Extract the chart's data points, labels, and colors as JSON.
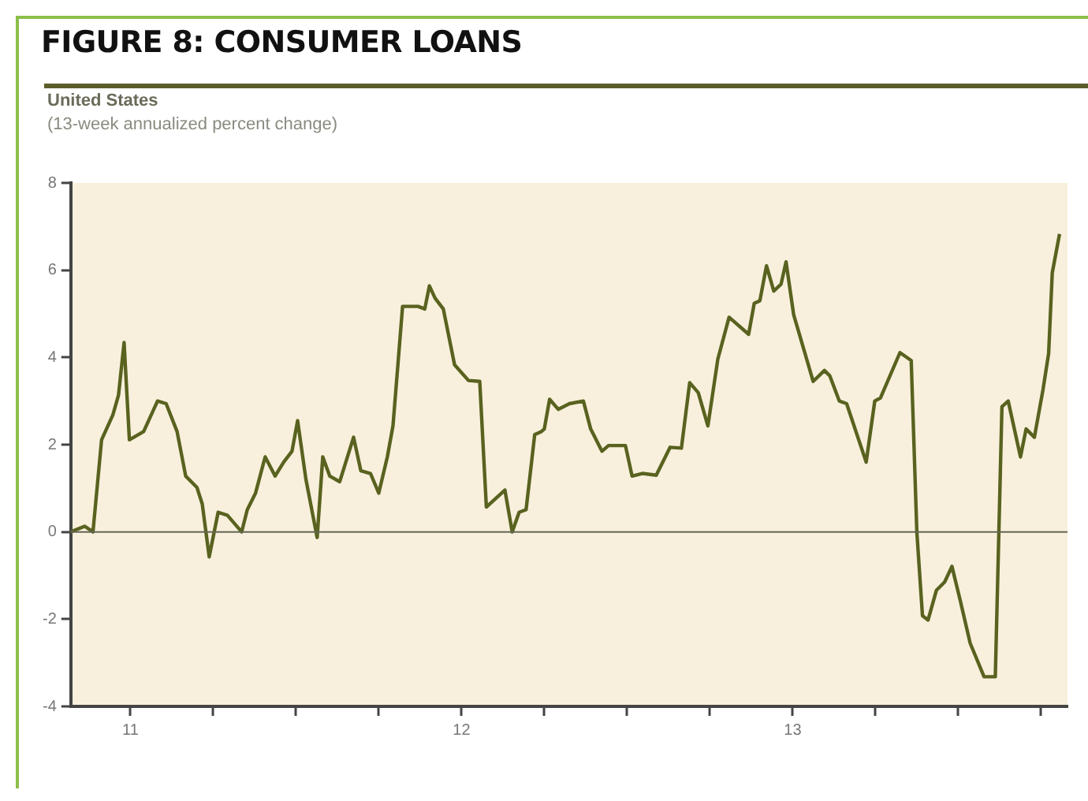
{
  "chart_data": {
    "type": "line",
    "title": "FIGURE 8: CONSUMER LOANS",
    "subtitle": "United States",
    "ylabel": "(13-week annualized percent change)",
    "series": [
      {
        "color": "#59621f",
        "x": [
          10.82,
          10.862,
          10.887,
          10.913,
          10.947,
          10.964,
          10.981,
          10.997,
          11.04,
          11.082,
          11.108,
          11.141,
          11.167,
          11.201,
          11.217,
          11.238,
          11.265,
          11.293,
          11.336,
          11.353,
          11.378,
          11.407,
          11.437,
          11.463,
          11.488,
          11.505,
          11.53,
          11.564,
          11.581,
          11.602,
          11.632,
          11.674,
          11.696,
          11.725,
          11.75,
          11.776,
          11.793,
          11.822,
          11.869,
          11.889,
          11.903,
          11.92,
          11.945,
          11.979,
          12.021,
          12.055,
          12.075,
          12.131,
          12.153,
          12.174,
          12.195,
          12.221,
          12.241,
          12.25,
          12.266,
          12.292,
          12.326,
          12.368,
          12.39,
          12.424,
          12.444,
          12.495,
          12.515,
          12.546,
          12.588,
          12.63,
          12.664,
          12.689,
          12.715,
          12.744,
          12.774,
          12.808,
          12.867,
          12.884,
          12.901,
          12.921,
          12.943,
          12.965,
          12.98,
          13.003,
          13.062,
          13.096,
          13.112,
          13.141,
          13.163,
          13.222,
          13.248,
          13.265,
          13.324,
          13.358,
          13.375,
          13.392,
          13.409,
          13.434,
          13.459,
          13.481,
          13.507,
          13.536,
          13.578,
          13.612,
          13.632,
          13.651,
          13.688,
          13.705,
          13.73,
          13.756,
          13.773,
          13.784,
          13.806
        ],
        "values": [
          0,
          0.13,
          0,
          2.11,
          2.68,
          3.13,
          4.34,
          2.11,
          2.3,
          3.0,
          2.94,
          2.3,
          1.28,
          1.02,
          0.64,
          -0.57,
          0.45,
          0.38,
          0,
          0.51,
          0.89,
          1.72,
          1.28,
          1.6,
          1.85,
          2.55,
          1.21,
          -0.13,
          1.72,
          1.28,
          1.15,
          2.17,
          1.4,
          1.34,
          0.89,
          1.72,
          2.43,
          5.17,
          5.17,
          5.11,
          5.64,
          5.36,
          5.11,
          3.83,
          3.47,
          3.45,
          0.57,
          0.96,
          0,
          0.45,
          0.51,
          2.23,
          2.3,
          2.36,
          3.04,
          2.81,
          2.94,
          3.0,
          2.36,
          1.85,
          1.98,
          1.98,
          1.28,
          1.34,
          1.3,
          1.94,
          1.92,
          3.42,
          3.19,
          2.43,
          3.96,
          4.92,
          4.53,
          5.24,
          5.3,
          6.1,
          5.52,
          5.68,
          6.19,
          4.98,
          3.45,
          3.7,
          3.58,
          3.0,
          2.94,
          1.6,
          3.0,
          3.07,
          4.11,
          3.93,
          0,
          -1.92,
          -2.02,
          -1.34,
          -1.15,
          -0.79,
          -1.6,
          -2.55,
          -3.32,
          -3.32,
          2.87,
          3.0,
          1.72,
          2.36,
          2.17,
          3.26,
          4.09,
          5.94,
          6.83
        ]
      }
    ],
    "xlim": [
      10.82,
      13.83
    ],
    "xticks": [
      11,
      {
        "value": 11.25,
        "label": null
      },
      {
        "value": 11.5,
        "label": null
      },
      {
        "value": 11.75,
        "label": null
      },
      12,
      {
        "value": 12.25,
        "label": null
      },
      {
        "value": 12.5,
        "label": null
      },
      {
        "value": 12.75,
        "label": null
      },
      13,
      {
        "value": 13.25,
        "label": null
      },
      {
        "value": 13.5,
        "label": null
      },
      {
        "value": 13.75,
        "label": null
      }
    ],
    "ylim": [
      -4,
      8
    ],
    "yticks": [
      -4,
      -2,
      0,
      2,
      4,
      6,
      8
    ],
    "ref_lines": [
      {
        "axis": "y",
        "value": 0,
        "color": "#666655"
      }
    ],
    "grid": false,
    "legend": false,
    "marker": "none",
    "line_style": "solid"
  }
}
